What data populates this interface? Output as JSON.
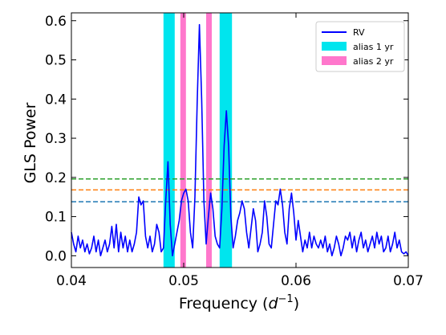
{
  "chart_data": {
    "type": "line",
    "xlabel": "Frequency (d^-1)",
    "ylabel": "GLS Power",
    "xlim": [
      0.04,
      0.07
    ],
    "ylim": [
      -0.03,
      0.62
    ],
    "x_ticks": [
      0.04,
      0.05,
      0.06,
      0.07
    ],
    "x_tick_labels": [
      "0.04",
      "0.05",
      "0.06",
      "0.07"
    ],
    "y_ticks": [
      0.0,
      0.1,
      0.2,
      0.3,
      0.4,
      0.5,
      0.6
    ],
    "y_tick_labels": [
      "0.0",
      "0.1",
      "0.2",
      "0.3",
      "0.4",
      "0.5",
      "0.6"
    ],
    "grid": false,
    "legend_position": "top-right",
    "series": [
      {
        "name": "RV",
        "color": "#0000ff",
        "points": [
          [
            0.04,
            0.06
          ],
          [
            0.0402,
            0.03
          ],
          [
            0.0404,
            0.01
          ],
          [
            0.0406,
            0.05
          ],
          [
            0.0408,
            0.02
          ],
          [
            0.041,
            0.04
          ],
          [
            0.0412,
            0.01
          ],
          [
            0.0414,
            0.03
          ],
          [
            0.0416,
            0.005
          ],
          [
            0.0418,
            0.02
          ],
          [
            0.042,
            0.05
          ],
          [
            0.0422,
            0.01
          ],
          [
            0.0424,
            0.04
          ],
          [
            0.0426,
            0.0
          ],
          [
            0.0428,
            0.02
          ],
          [
            0.043,
            0.04
          ],
          [
            0.0432,
            0.01
          ],
          [
            0.0434,
            0.03
          ],
          [
            0.0436,
            0.075
          ],
          [
            0.0438,
            0.02
          ],
          [
            0.044,
            0.08
          ],
          [
            0.0442,
            0.01
          ],
          [
            0.0444,
            0.06
          ],
          [
            0.0446,
            0.02
          ],
          [
            0.0448,
            0.05
          ],
          [
            0.045,
            0.01
          ],
          [
            0.0452,
            0.04
          ],
          [
            0.0454,
            0.01
          ],
          [
            0.0456,
            0.03
          ],
          [
            0.0458,
            0.06
          ],
          [
            0.046,
            0.15
          ],
          [
            0.0462,
            0.13
          ],
          [
            0.0464,
            0.14
          ],
          [
            0.0466,
            0.05
          ],
          [
            0.0468,
            0.02
          ],
          [
            0.047,
            0.05
          ],
          [
            0.0472,
            0.01
          ],
          [
            0.0474,
            0.03
          ],
          [
            0.0476,
            0.08
          ],
          [
            0.0478,
            0.06
          ],
          [
            0.048,
            0.01
          ],
          [
            0.0482,
            0.02
          ],
          [
            0.0484,
            0.14
          ],
          [
            0.0486,
            0.24
          ],
          [
            0.0488,
            0.08
          ],
          [
            0.049,
            0.0
          ],
          [
            0.0492,
            0.03
          ],
          [
            0.0494,
            0.06
          ],
          [
            0.0496,
            0.09
          ],
          [
            0.0498,
            0.14
          ],
          [
            0.05,
            0.16
          ],
          [
            0.0502,
            0.17
          ],
          [
            0.0504,
            0.14
          ],
          [
            0.0506,
            0.06
          ],
          [
            0.0508,
            0.02
          ],
          [
            0.051,
            0.15
          ],
          [
            0.0512,
            0.39
          ],
          [
            0.0514,
            0.59
          ],
          [
            0.0516,
            0.4
          ],
          [
            0.0518,
            0.14
          ],
          [
            0.052,
            0.03
          ],
          [
            0.0522,
            0.1
          ],
          [
            0.0524,
            0.16
          ],
          [
            0.0526,
            0.12
          ],
          [
            0.0528,
            0.05
          ],
          [
            0.053,
            0.03
          ],
          [
            0.0532,
            0.02
          ],
          [
            0.0534,
            0.12
          ],
          [
            0.0536,
            0.28
          ],
          [
            0.0538,
            0.37
          ],
          [
            0.054,
            0.28
          ],
          [
            0.0542,
            0.1
          ],
          [
            0.0544,
            0.02
          ],
          [
            0.0546,
            0.05
          ],
          [
            0.0548,
            0.09
          ],
          [
            0.055,
            0.11
          ],
          [
            0.0552,
            0.14
          ],
          [
            0.0554,
            0.12
          ],
          [
            0.0556,
            0.06
          ],
          [
            0.0558,
            0.02
          ],
          [
            0.056,
            0.07
          ],
          [
            0.0562,
            0.12
          ],
          [
            0.0564,
            0.09
          ],
          [
            0.0566,
            0.01
          ],
          [
            0.0568,
            0.03
          ],
          [
            0.057,
            0.06
          ],
          [
            0.0572,
            0.14
          ],
          [
            0.0574,
            0.1
          ],
          [
            0.0576,
            0.03
          ],
          [
            0.0578,
            0.02
          ],
          [
            0.058,
            0.08
          ],
          [
            0.0582,
            0.14
          ],
          [
            0.0584,
            0.13
          ],
          [
            0.0586,
            0.17
          ],
          [
            0.0588,
            0.13
          ],
          [
            0.059,
            0.06
          ],
          [
            0.0592,
            0.03
          ],
          [
            0.0594,
            0.12
          ],
          [
            0.0596,
            0.16
          ],
          [
            0.0598,
            0.11
          ],
          [
            0.06,
            0.04
          ],
          [
            0.0602,
            0.09
          ],
          [
            0.0604,
            0.05
          ],
          [
            0.0606,
            0.01
          ],
          [
            0.0608,
            0.04
          ],
          [
            0.061,
            0.02
          ],
          [
            0.0612,
            0.06
          ],
          [
            0.0614,
            0.02
          ],
          [
            0.0616,
            0.05
          ],
          [
            0.0618,
            0.03
          ],
          [
            0.062,
            0.02
          ],
          [
            0.0622,
            0.04
          ],
          [
            0.0624,
            0.02
          ],
          [
            0.0626,
            0.05
          ],
          [
            0.0628,
            0.01
          ],
          [
            0.063,
            0.03
          ],
          [
            0.0632,
            0.0
          ],
          [
            0.0634,
            0.02
          ],
          [
            0.0636,
            0.05
          ],
          [
            0.0638,
            0.03
          ],
          [
            0.064,
            0.0
          ],
          [
            0.0642,
            0.02
          ],
          [
            0.0644,
            0.05
          ],
          [
            0.0646,
            0.04
          ],
          [
            0.0648,
            0.06
          ],
          [
            0.065,
            0.02
          ],
          [
            0.0652,
            0.05
          ],
          [
            0.0654,
            0.01
          ],
          [
            0.0656,
            0.04
          ],
          [
            0.0658,
            0.06
          ],
          [
            0.066,
            0.02
          ],
          [
            0.0662,
            0.04
          ],
          [
            0.0664,
            0.01
          ],
          [
            0.0666,
            0.03
          ],
          [
            0.0668,
            0.05
          ],
          [
            0.067,
            0.02
          ],
          [
            0.0672,
            0.06
          ],
          [
            0.0674,
            0.03
          ],
          [
            0.0676,
            0.05
          ],
          [
            0.0678,
            0.01
          ],
          [
            0.068,
            0.02
          ],
          [
            0.0682,
            0.05
          ],
          [
            0.0684,
            0.01
          ],
          [
            0.0686,
            0.03
          ],
          [
            0.0688,
            0.06
          ],
          [
            0.069,
            0.02
          ],
          [
            0.0692,
            0.04
          ],
          [
            0.0694,
            0.01
          ],
          [
            0.0696,
            0.005
          ],
          [
            0.0698,
            0.01
          ],
          [
            0.07,
            0.0
          ]
        ]
      }
    ],
    "alias_bands": [
      {
        "name": "alias 1 yr",
        "color": "#00e5ee",
        "ranges": [
          [
            0.0482,
            0.0492
          ],
          [
            0.0532,
            0.0543
          ]
        ]
      },
      {
        "name": "alias 2 yr",
        "color": "#ff77cc",
        "ranges": [
          [
            0.0497,
            0.0502
          ],
          [
            0.052,
            0.0525
          ]
        ]
      }
    ],
    "thresholds": [
      {
        "value": 0.196,
        "color": "#2ca02c",
        "style": "dashed"
      },
      {
        "value": 0.168,
        "color": "#ff7f0e",
        "style": "dashed"
      },
      {
        "value": 0.138,
        "color": "#1f77b4",
        "style": "dashed"
      }
    ]
  }
}
